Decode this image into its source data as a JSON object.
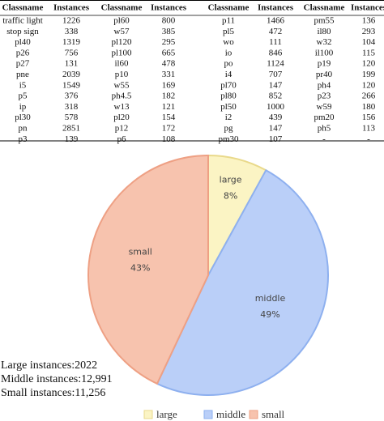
{
  "table": {
    "header": [
      "Classname",
      "Instances",
      "Classname",
      "Instances",
      "Classname",
      "Instances",
      "Classname",
      "Instances"
    ],
    "rows": [
      [
        "traffic light",
        1226,
        "pl60",
        800,
        "p11",
        1466,
        "pm55",
        136
      ],
      [
        "stop sign",
        338,
        "w57",
        385,
        "pl5",
        472,
        "il80",
        293
      ],
      [
        "pl40",
        1319,
        "pl120",
        295,
        "wo",
        111,
        "w32",
        104
      ],
      [
        "p26",
        756,
        "pl100",
        665,
        "io",
        846,
        "il100",
        115
      ],
      [
        "p27",
        131,
        "il60",
        478,
        "po",
        1124,
        "p19",
        120
      ],
      [
        "pne",
        2039,
        "p10",
        331,
        "i4",
        707,
        "pr40",
        199
      ],
      [
        "i5",
        1549,
        "w55",
        169,
        "pl70",
        147,
        "ph4",
        120
      ],
      [
        "p5",
        376,
        "ph4.5",
        182,
        "pl80",
        852,
        "p23",
        266
      ],
      [
        "ip",
        318,
        "w13",
        121,
        "pl50",
        1000,
        "w59",
        180
      ],
      [
        "pl30",
        578,
        "pl20",
        154,
        "i2",
        439,
        "pm20",
        156
      ],
      [
        "pn",
        2851,
        "p12",
        172,
        "pg",
        147,
        "ph5",
        113
      ],
      [
        "p3",
        139,
        "p6",
        108,
        "pm30",
        107,
        "-",
        "-"
      ]
    ]
  },
  "notes": [
    "Large instances:2022",
    "Middle instances:12,991",
    "Small instances:11,256"
  ],
  "chart_data": {
    "type": "pie",
    "categories": [
      "large",
      "middle",
      "small"
    ],
    "values": [
      8,
      49,
      43
    ],
    "value_labels": [
      "8%",
      "49%",
      "43%"
    ],
    "colors": [
      "#fbf4c4",
      "#bacff8",
      "#f7c3ae"
    ],
    "edge_colors": [
      "#e9d98b",
      "#8eb0ef",
      "#eea084"
    ]
  }
}
